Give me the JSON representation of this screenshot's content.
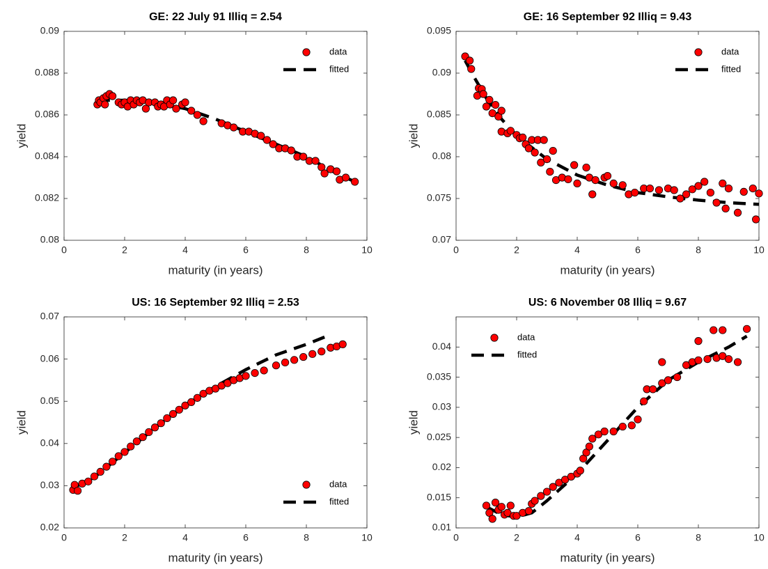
{
  "chart_data": [
    {
      "type": "scatter",
      "title": "GE: 22 July 91 Illiq = 2.54",
      "xlabel": "maturity (in years)",
      "ylabel": "yield",
      "xlim": [
        0,
        10
      ],
      "ylim": [
        0.08,
        0.09
      ],
      "xticks": [
        0,
        2,
        4,
        6,
        8,
        10
      ],
      "yticks": [
        0.08,
        0.082,
        0.084,
        0.086,
        0.088,
        0.09
      ],
      "legend": "upper right",
      "series": [
        {
          "name": "data",
          "mode": "markers",
          "color": "#ff0000",
          "x": [
            1.1,
            1.15,
            1.2,
            1.3,
            1.35,
            1.4,
            1.5,
            1.6,
            1.8,
            1.9,
            2.0,
            2.1,
            2.2,
            2.3,
            2.4,
            2.5,
            2.6,
            2.7,
            2.8,
            3.0,
            3.1,
            3.2,
            3.3,
            3.4,
            3.5,
            3.6,
            3.7,
            3.9,
            4.0,
            4.2,
            4.4,
            4.6,
            5.2,
            5.4,
            5.6,
            5.9,
            6.1,
            6.3,
            6.5,
            6.7,
            6.9,
            7.1,
            7.3,
            7.5,
            7.7,
            7.9,
            8.1,
            8.3,
            8.5,
            8.6,
            8.8,
            9.0,
            9.1,
            9.3,
            9.6
          ],
          "values": [
            0.0865,
            0.0867,
            0.0866,
            0.0868,
            0.0865,
            0.0869,
            0.087,
            0.0869,
            0.0866,
            0.0865,
            0.0866,
            0.0864,
            0.0867,
            0.0865,
            0.0867,
            0.0866,
            0.0867,
            0.0863,
            0.0866,
            0.0866,
            0.0864,
            0.0865,
            0.0864,
            0.0867,
            0.0865,
            0.0867,
            0.0863,
            0.0865,
            0.0866,
            0.0862,
            0.086,
            0.0857,
            0.0856,
            0.0855,
            0.0854,
            0.0852,
            0.0852,
            0.0851,
            0.085,
            0.0848,
            0.0846,
            0.0844,
            0.0844,
            0.0843,
            0.084,
            0.084,
            0.0838,
            0.0838,
            0.0835,
            0.0832,
            0.0834,
            0.0833,
            0.0829,
            0.083,
            0.0828
          ]
        },
        {
          "name": "fitted",
          "mode": "dashed-line",
          "color": "#000000",
          "x": [
            1.1,
            2,
            3,
            4,
            5,
            6,
            7,
            8,
            9,
            9.6
          ],
          "values": [
            0.0867,
            0.0867,
            0.0866,
            0.0863,
            0.0858,
            0.0852,
            0.0846,
            0.084,
            0.0832,
            0.0828
          ]
        }
      ]
    },
    {
      "type": "scatter",
      "title": "GE: 16 September 92 Illiq = 9.43",
      "xlabel": "maturity (in years)",
      "ylabel": "yield",
      "xlim": [
        0,
        10
      ],
      "ylim": [
        0.07,
        0.095
      ],
      "xticks": [
        0,
        2,
        4,
        6,
        8,
        10
      ],
      "yticks": [
        0.07,
        0.075,
        0.08,
        0.085,
        0.09,
        0.095
      ],
      "legend": "upper right",
      "series": [
        {
          "name": "data",
          "mode": "markers",
          "color": "#ff0000",
          "x": [
            0.3,
            0.45,
            0.5,
            0.7,
            0.75,
            0.85,
            0.9,
            1.0,
            1.1,
            1.2,
            1.3,
            1.4,
            1.5,
            1.5,
            1.7,
            1.8,
            2.0,
            2.1,
            2.2,
            2.3,
            2.4,
            2.5,
            2.6,
            2.7,
            2.8,
            2.9,
            3.0,
            3.1,
            3.2,
            3.3,
            3.5,
            3.7,
            3.9,
            4.0,
            4.3,
            4.4,
            4.5,
            4.6,
            4.9,
            5.0,
            5.2,
            5.5,
            5.7,
            5.9,
            6.2,
            6.4,
            6.7,
            7.0,
            7.2,
            7.4,
            7.6,
            7.8,
            8.0,
            8.2,
            8.4,
            8.6,
            8.8,
            8.9,
            9.0,
            9.3,
            9.5,
            9.8,
            9.9,
            10.0
          ],
          "values": [
            0.092,
            0.0915,
            0.0905,
            0.0873,
            0.0882,
            0.0881,
            0.0875,
            0.086,
            0.0868,
            0.0852,
            0.0862,
            0.0848,
            0.0855,
            0.083,
            0.0828,
            0.0831,
            0.0826,
            0.0822,
            0.0823,
            0.0815,
            0.081,
            0.082,
            0.0805,
            0.082,
            0.0793,
            0.082,
            0.0797,
            0.0782,
            0.0807,
            0.0772,
            0.0775,
            0.0773,
            0.079,
            0.0768,
            0.0787,
            0.0775,
            0.0755,
            0.0772,
            0.0775,
            0.0777,
            0.0768,
            0.0766,
            0.0755,
            0.0757,
            0.0762,
            0.0762,
            0.076,
            0.0762,
            0.076,
            0.075,
            0.0755,
            0.0761,
            0.0765,
            0.077,
            0.0757,
            0.0745,
            0.0768,
            0.0738,
            0.0762,
            0.0733,
            0.0758,
            0.0762,
            0.0725,
            0.0756
          ]
        },
        {
          "name": "fitted",
          "mode": "dashed-line",
          "color": "#000000",
          "x": [
            0.3,
            0.6,
            1,
            1.5,
            2,
            3,
            4,
            5,
            6,
            7,
            8,
            9,
            10
          ],
          "values": [
            0.0915,
            0.0895,
            0.087,
            0.0845,
            0.0825,
            0.0797,
            0.0778,
            0.0766,
            0.0757,
            0.0752,
            0.0748,
            0.0745,
            0.0743
          ]
        }
      ]
    },
    {
      "type": "scatter",
      "title": "US: 16 September 92 Illiq = 2.53",
      "xlabel": "maturity (in years)",
      "ylabel": "yield",
      "xlim": [
        0,
        10
      ],
      "ylim": [
        0.02,
        0.07
      ],
      "xticks": [
        0,
        2,
        4,
        6,
        8,
        10
      ],
      "yticks": [
        0.02,
        0.03,
        0.04,
        0.05,
        0.06,
        0.07
      ],
      "legend": "lower right",
      "series": [
        {
          "name": "data",
          "mode": "markers",
          "color": "#ff0000",
          "x": [
            0.3,
            0.35,
            0.45,
            0.6,
            0.8,
            1.0,
            1.2,
            1.4,
            1.6,
            1.8,
            2.0,
            2.2,
            2.4,
            2.6,
            2.8,
            3.0,
            3.2,
            3.4,
            3.6,
            3.8,
            4.0,
            4.2,
            4.4,
            4.6,
            4.8,
            5.0,
            5.2,
            5.4,
            5.6,
            5.8,
            6.0,
            6.3,
            6.6,
            7.0,
            7.3,
            7.6,
            7.9,
            8.2,
            8.5,
            8.8,
            9.0,
            9.2
          ],
          "values": [
            0.029,
            0.0302,
            0.0288,
            0.0305,
            0.031,
            0.0322,
            0.0333,
            0.0345,
            0.0357,
            0.037,
            0.038,
            0.0393,
            0.0405,
            0.0415,
            0.0427,
            0.0438,
            0.0448,
            0.046,
            0.047,
            0.048,
            0.049,
            0.0498,
            0.0508,
            0.0518,
            0.0525,
            0.053,
            0.0537,
            0.0543,
            0.055,
            0.0555,
            0.056,
            0.0567,
            0.0573,
            0.0585,
            0.0592,
            0.0598,
            0.0605,
            0.0612,
            0.0618,
            0.0627,
            0.063,
            0.0635
          ]
        },
        {
          "name": "fitted",
          "mode": "dashed-line",
          "color": "#000000",
          "x": [
            0.3,
            1,
            2,
            3,
            4,
            5,
            6,
            7,
            8,
            8.7
          ],
          "values": [
            0.0295,
            0.032,
            0.0378,
            0.0437,
            0.049,
            0.0535,
            0.0575,
            0.061,
            0.0635,
            0.0655
          ]
        }
      ]
    },
    {
      "type": "scatter",
      "title": "US: 6 November 08 Illiq = 9.67",
      "xlabel": "maturity (in years)",
      "ylabel": "yield",
      "xlim": [
        0,
        10
      ],
      "ylim": [
        0.01,
        0.045
      ],
      "xticks": [
        0,
        2,
        4,
        6,
        8,
        10
      ],
      "yticks": [
        0.01,
        0.015,
        0.02,
        0.025,
        0.03,
        0.035,
        0.04
      ],
      "legend": "upper left",
      "series": [
        {
          "name": "data",
          "mode": "markers",
          "color": "#ff0000",
          "x": [
            1.0,
            1.1,
            1.2,
            1.3,
            1.4,
            1.5,
            1.6,
            1.7,
            1.8,
            1.9,
            2.0,
            2.2,
            2.4,
            2.5,
            2.6,
            2.8,
            3.0,
            3.2,
            3.4,
            3.6,
            3.8,
            4.0,
            4.1,
            4.2,
            4.3,
            4.4,
            4.5,
            4.7,
            4.9,
            5.2,
            5.5,
            5.8,
            6.0,
            6.2,
            6.3,
            6.5,
            6.8,
            6.8,
            7.0,
            7.3,
            7.6,
            7.8,
            8.0,
            8.0,
            8.3,
            8.5,
            8.6,
            8.8,
            8.8,
            9.0,
            9.3,
            9.6
          ],
          "values": [
            0.0137,
            0.0125,
            0.0115,
            0.0142,
            0.013,
            0.0135,
            0.0122,
            0.0125,
            0.0137,
            0.012,
            0.012,
            0.0125,
            0.0128,
            0.014,
            0.0145,
            0.0153,
            0.016,
            0.0168,
            0.0175,
            0.018,
            0.0185,
            0.019,
            0.0195,
            0.0215,
            0.0225,
            0.0235,
            0.0248,
            0.0255,
            0.026,
            0.026,
            0.0268,
            0.027,
            0.028,
            0.031,
            0.033,
            0.033,
            0.0375,
            0.034,
            0.0345,
            0.035,
            0.037,
            0.0375,
            0.041,
            0.0378,
            0.038,
            0.0428,
            0.0382,
            0.0385,
            0.0428,
            0.038,
            0.0375,
            0.043
          ]
        },
        {
          "name": "fitted",
          "mode": "dashed-line",
          "color": "#000000",
          "x": [
            1.0,
            1.5,
            2,
            2.5,
            3,
            4,
            5,
            6,
            7,
            8,
            9,
            9.6
          ],
          "values": [
            0.0135,
            0.0122,
            0.0118,
            0.0125,
            0.0145,
            0.019,
            0.0245,
            0.03,
            0.0345,
            0.0375,
            0.04,
            0.0418
          ]
        }
      ]
    }
  ]
}
